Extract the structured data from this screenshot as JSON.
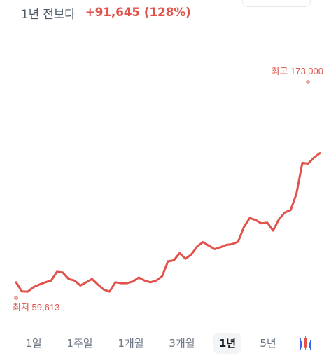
{
  "header": {
    "change_label": "1년 전보다",
    "change_value": "+91,645 (128%)"
  },
  "colors": {
    "line": "#e0524a",
    "marker": "#eaa49f",
    "text_secondary": "#6b7684",
    "tab_active_bg": "#f2f4f6"
  },
  "chart_data": {
    "type": "line",
    "series": [
      {
        "values": [
          67800,
          63000,
          62900,
          65300,
          66600,
          67800,
          68700,
          73300,
          72900,
          69500,
          68700,
          66100,
          67800,
          69500,
          66600,
          64000,
          62900,
          67800,
          67300,
          67300,
          68200,
          70300,
          68700,
          67800,
          68700,
          71000,
          78800,
          79300,
          83100,
          80100,
          82400,
          86600,
          88900,
          87000,
          85200,
          86200,
          87400,
          87800,
          89100,
          96800,
          101500,
          100500,
          98700,
          99100,
          94900,
          100900,
          104400,
          105700,
          114400,
          130500,
          130100,
          133300,
          135600
        ]
      }
    ],
    "max_label": "최고 173,000",
    "min_label": "최저 59,613",
    "y_range": [
      59613,
      173000
    ]
  },
  "range_tabs": [
    {
      "label": "1일",
      "active": false
    },
    {
      "label": "1주일",
      "active": false
    },
    {
      "label": "1개월",
      "active": false
    },
    {
      "label": "3개월",
      "active": false
    },
    {
      "label": "1년",
      "active": true
    },
    {
      "label": "5년",
      "active": false
    }
  ],
  "candle_toggle": {
    "icon": "candlestick-icon",
    "colors": [
      "#3b64e6",
      "#e0524a"
    ]
  }
}
